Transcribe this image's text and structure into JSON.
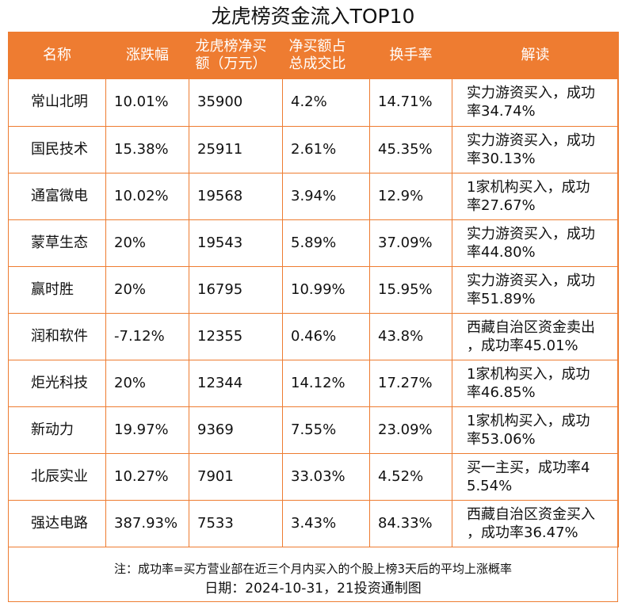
{
  "title": "龙虎榜资金流入TOP10",
  "colors": {
    "accent": "#ee7c31"
  },
  "headers": [
    {
      "lines": [
        "名称"
      ]
    },
    {
      "lines": [
        "涨跌幅"
      ]
    },
    {
      "lines": [
        "龙虎榜净买",
        "额（万元）"
      ]
    },
    {
      "lines": [
        "净买额占",
        "总成交比"
      ]
    },
    {
      "lines": [
        "换手率"
      ]
    },
    {
      "lines": [
        "解读"
      ]
    }
  ],
  "rows": [
    {
      "name": "常山北明",
      "change": "10.01%",
      "net_buy": "35900",
      "ratio": "4.2%",
      "turnover": "14.71%",
      "desc_lines": [
        "实力游资买入，成功",
        "率34.74%"
      ]
    },
    {
      "name": "国民技术",
      "change": "15.38%",
      "net_buy": "25911",
      "ratio": "2.61%",
      "turnover": "45.35%",
      "desc_lines": [
        "实力游资买入，成功",
        "率30.13%"
      ]
    },
    {
      "name": "通富微电",
      "change": "10.02%",
      "net_buy": "19568",
      "ratio": "3.94%",
      "turnover": "12.9%",
      "desc_lines": [
        "1家机构买入，成功",
        "率27.67%"
      ]
    },
    {
      "name": "蒙草生态",
      "change": "20%",
      "net_buy": "19543",
      "ratio": "5.89%",
      "turnover": "37.09%",
      "desc_lines": [
        "实力游资买入，成功",
        "率44.80%"
      ]
    },
    {
      "name": "赢时胜",
      "change": "20%",
      "net_buy": "16795",
      "ratio": "10.99%",
      "turnover": "15.95%",
      "desc_lines": [
        "实力游资买入，成功",
        "率51.89%"
      ]
    },
    {
      "name": "润和软件",
      "change": "-7.12%",
      "net_buy": "12355",
      "ratio": "0.46%",
      "turnover": "43.8%",
      "desc_lines": [
        "西藏自治区资金卖出",
        "，成功率45.01%"
      ]
    },
    {
      "name": "炬光科技",
      "change": "20%",
      "net_buy": "12344",
      "ratio": "14.12%",
      "turnover": "17.27%",
      "desc_lines": [
        "1家机构买入，成功",
        "率46.85%"
      ]
    },
    {
      "name": "新动力",
      "change": "19.97%",
      "net_buy": "9369",
      "ratio": "7.55%",
      "turnover": "23.09%",
      "desc_lines": [
        "1家机构买入，成功",
        "率53.06%"
      ]
    },
    {
      "name": "北辰实业",
      "change": "10.27%",
      "net_buy": "7901",
      "ratio": "33.03%",
      "turnover": "4.52%",
      "desc_lines": [
        "买一主买，成功率4",
        "5.54%"
      ]
    },
    {
      "name": "强达电路",
      "change": "387.93%",
      "net_buy": "7533",
      "ratio": "3.43%",
      "turnover": "84.33%",
      "desc_lines": [
        "西藏自治区资金买入",
        "，成功率36.47%"
      ]
    }
  ],
  "note": "注：成功率=买方营业部在近三个月内买入的个股上榜3天后的平均上涨概率",
  "date_line": "日期：2024-10-31，21投资通制图"
}
